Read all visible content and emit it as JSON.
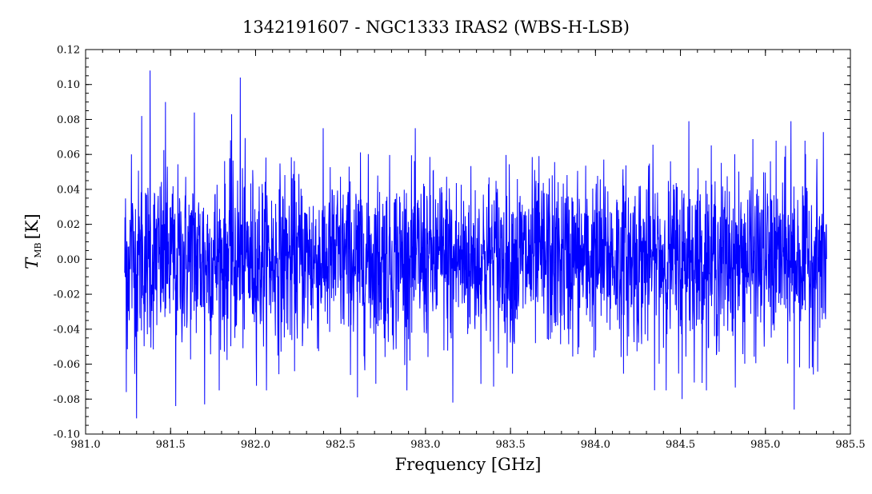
{
  "chart_data": {
    "type": "line",
    "title": "1342191607 - NGC1333 IRAS2 (WBS-H-LSB)",
    "xlabel": "Frequency [GHz]",
    "ylabel": {
      "symbol": "T",
      "subscript": "MB",
      "unit": "[K]"
    },
    "xlim": [
      981.0,
      985.5
    ],
    "ylim": [
      -0.1,
      0.12
    ],
    "x_ticks": [
      981.0,
      981.5,
      982.0,
      982.5,
      983.0,
      983.5,
      984.0,
      984.5,
      985.0,
      985.5
    ],
    "x_tick_labels": [
      "981.0",
      "981.5",
      "982.0",
      "982.5",
      "983.0",
      "983.5",
      "984.0",
      "984.5",
      "985.0",
      "985.5"
    ],
    "y_ticks": [
      -0.1,
      -0.08,
      -0.06,
      -0.04,
      -0.02,
      0.0,
      0.02,
      0.04,
      0.06,
      0.08,
      0.1,
      0.12
    ],
    "y_tick_labels": [
      "-0.10",
      "-0.08",
      "-0.06",
      "-0.04",
      "-0.02",
      "0.00",
      "0.02",
      "0.04",
      "0.06",
      "0.08",
      "0.10",
      "0.12"
    ],
    "series": [
      {
        "color": "#0000ff",
        "x_start": 981.23,
        "x_end": 985.36,
        "baseline": 0.0,
        "noise_rms": 0.025,
        "spikes": [
          {
            "x": 981.24,
            "y": -0.076
          },
          {
            "x": 981.27,
            "y": 0.06
          },
          {
            "x": 981.3,
            "y": -0.091
          },
          {
            "x": 981.33,
            "y": 0.082
          },
          {
            "x": 981.38,
            "y": 0.108
          },
          {
            "x": 981.47,
            "y": 0.09
          },
          {
            "x": 981.53,
            "y": -0.084
          },
          {
            "x": 981.64,
            "y": 0.084
          },
          {
            "x": 981.7,
            "y": -0.083
          },
          {
            "x": 981.86,
            "y": 0.083
          },
          {
            "x": 981.91,
            "y": 0.104
          },
          {
            "x": 982.6,
            "y": -0.079
          },
          {
            "x": 983.16,
            "y": -0.082
          },
          {
            "x": 984.51,
            "y": -0.08
          },
          {
            "x": 984.55,
            "y": 0.079
          },
          {
            "x": 985.15,
            "y": 0.079
          },
          {
            "x": 985.17,
            "y": -0.086
          }
        ]
      }
    ]
  }
}
